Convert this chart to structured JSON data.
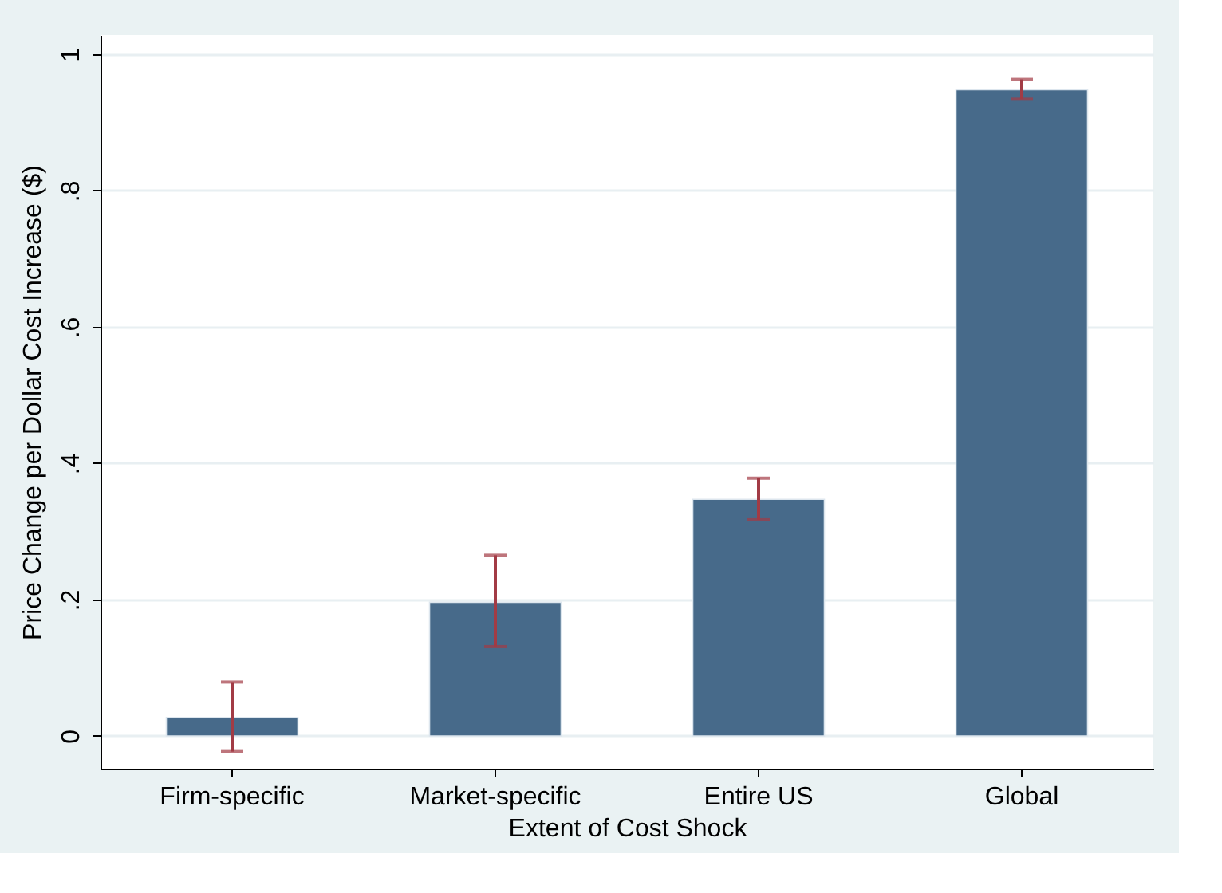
{
  "chart_data": {
    "type": "bar",
    "xlabel": "Extent of Cost Shock",
    "ylabel": "Price Change per Dollar Cost Increase ($)",
    "categories": [
      "Firm-specific",
      "Market-specific",
      "Entire US",
      "Global"
    ],
    "series": [
      {
        "color": "#476a8a",
        "values": [
          0.027,
          0.196,
          0.347,
          0.948
        ],
        "errors": [
          [
            -0.023,
            0.079
          ],
          [
            0.131,
            0.265
          ],
          [
            0.317,
            0.378
          ],
          [
            0.934,
            0.963
          ]
        ]
      }
    ],
    "ylim": [
      -0.048,
      1.028
    ],
    "yticks": [
      0,
      {
        "value": 0.2,
        "label": ".2"
      },
      {
        "value": 0.4,
        "label": ".4"
      },
      {
        "value": 0.6,
        "label": ".6"
      },
      {
        "value": 0.8,
        "label": ".8"
      },
      1
    ],
    "grid": "y"
  }
}
